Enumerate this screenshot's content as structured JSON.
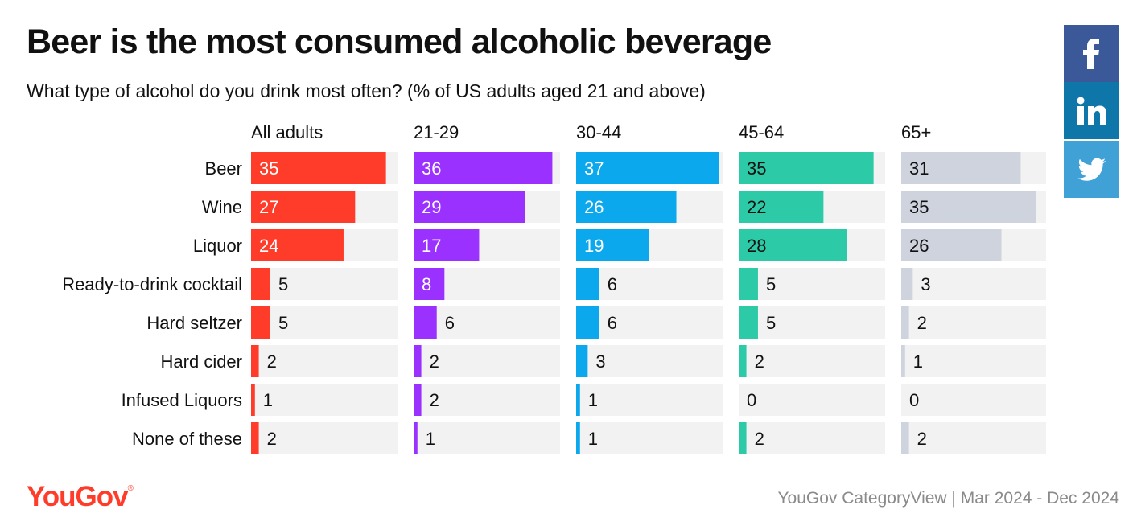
{
  "header": {
    "title": "Beer is the most consumed alcoholic beverage",
    "subtitle": "What type of alcohol do you drink most often? (% of US adults aged 21 and above)"
  },
  "social": {
    "facebook_icon": "facebook-icon",
    "linkedin_icon": "linkedin-icon",
    "twitter_icon": "twitter-icon",
    "colors": {
      "facebook": "#3b5998",
      "linkedin": "#0e76a8",
      "twitter": "#3fa1d6"
    }
  },
  "footer": {
    "logo": "YouGov",
    "source": "YouGov CategoryView | Mar 2024 - Dec 2024"
  },
  "chart_data": {
    "type": "bar",
    "orientation": "horizontal",
    "layout": "small-multiples",
    "categories": [
      "Beer",
      "Wine",
      "Liquor",
      "Ready-to-drink cocktail",
      "Hard seltzer",
      "Hard cider",
      "Infused Liquors",
      "None of these"
    ],
    "xlim": [
      0,
      38
    ],
    "series": [
      {
        "name": "All adults",
        "color": "#ff3c2a",
        "label_color_inside": "#ffffff",
        "values": [
          35,
          27,
          24,
          5,
          5,
          2,
          1,
          2
        ]
      },
      {
        "name": "21-29",
        "color": "#9b31ff",
        "label_color_inside": "#ffffff",
        "values": [
          36,
          29,
          17,
          8,
          6,
          2,
          2,
          1
        ]
      },
      {
        "name": "30-44",
        "color": "#0ba8ee",
        "label_color_inside": "#ffffff",
        "values": [
          37,
          26,
          19,
          6,
          6,
          3,
          1,
          1
        ]
      },
      {
        "name": "45-64",
        "color": "#2ccaa6",
        "label_color_inside": "#111111",
        "values": [
          35,
          22,
          28,
          5,
          5,
          2,
          0,
          2
        ]
      },
      {
        "name": "65+",
        "color": "#cfd3de",
        "label_color_inside": "#111111",
        "values": [
          31,
          35,
          26,
          3,
          2,
          1,
          0,
          2
        ]
      }
    ],
    "track_color": "#f3f2f3"
  }
}
